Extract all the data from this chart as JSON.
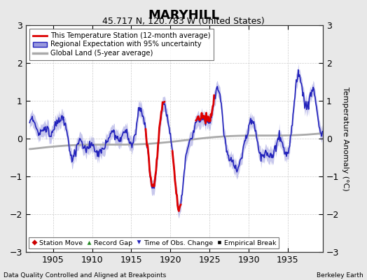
{
  "title": "MARYHILL",
  "subtitle": "45.717 N, 120.783 W (United States)",
  "ylabel": "Temperature Anomaly (°C)",
  "xlabel_note": "Data Quality Controlled and Aligned at Breakpoints",
  "credit": "Berkeley Earth",
  "xlim": [
    1901.5,
    1939.5
  ],
  "ylim": [
    -3,
    3
  ],
  "yticks": [
    -3,
    -2,
    -1,
    0,
    1,
    2,
    3
  ],
  "xticks": [
    1905,
    1910,
    1915,
    1920,
    1925,
    1930,
    1935
  ],
  "bg_color": "#e8e8e8",
  "plot_bg_color": "#ffffff",
  "regional_color": "#2222bb",
  "regional_fill_color": "#9999dd",
  "station_color": "#dd0000",
  "global_color": "#aaaaaa",
  "global_lw": 2.0,
  "regional_lw": 1.2,
  "station_lw": 2.0,
  "title_fontsize": 13,
  "subtitle_fontsize": 9,
  "tick_fontsize": 9,
  "label_fontsize": 8
}
